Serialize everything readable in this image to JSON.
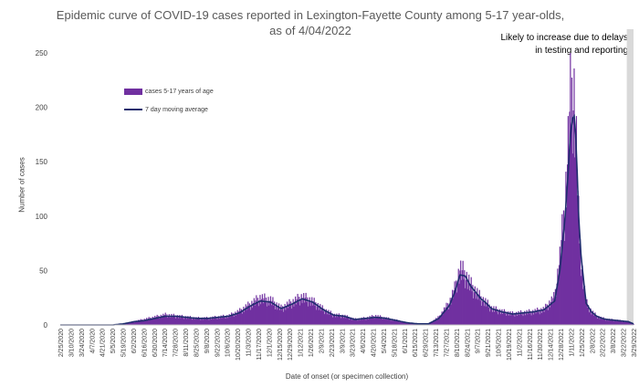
{
  "chart_data": {
    "type": "bar",
    "title": "Epidemic curve of COVID-19 cases reported in Lexington-Fayette County among 5-17 year-olds, as of 4/04/2022",
    "xlabel": "Date of onset (or specimen collection)",
    "ylabel": "Number of cases",
    "ylim": [
      0,
      250
    ],
    "yticks": [
      0,
      50,
      100,
      150,
      200,
      250
    ],
    "grid": false,
    "legend_position": "top-left",
    "annotation": "Likely to increase due to delays in testing and reporting",
    "shaded_region_note_position": "top-right",
    "x_tick_labels": [
      "2/25/2020",
      "3/10/2020",
      "3/24/2020",
      "4/7/2020",
      "4/21/2020",
      "5/5/2020",
      "5/19/2020",
      "6/2/2020",
      "6/16/2020",
      "6/30/2020",
      "7/14/2020",
      "7/28/2020",
      "8/11/2020",
      "8/25/2020",
      "9/8/2020",
      "9/22/2020",
      "10/6/2020",
      "10/20/2020",
      "11/3/2020",
      "11/17/2020",
      "12/1/2020",
      "12/15/2020",
      "12/29/2020",
      "1/12/2021",
      "1/26/2021",
      "2/9/2021",
      "2/23/2021",
      "3/9/2021",
      "3/23/2021",
      "4/6/2021",
      "4/20/2021",
      "5/4/2021",
      "5/18/2021",
      "6/1/2021",
      "6/15/2021",
      "6/29/2021",
      "7/13/2021",
      "7/27/2021",
      "8/10/2021",
      "8/24/2021",
      "9/7/2021",
      "9/21/2021",
      "10/5/2021",
      "10/19/2021",
      "11/2/2021",
      "11/16/2021",
      "11/30/2021",
      "12/14/2021",
      "12/28/2021",
      "1/11/2022",
      "1/25/2022",
      "2/8/2022",
      "2/22/2022",
      "3/8/2022",
      "3/22/2022",
      "3/29/2022"
    ],
    "series": [
      {
        "name": "cases 5-17 years of age",
        "kind": "bar",
        "color": "#7030a0",
        "x": [
          "2020-02-25",
          "2020-03-10",
          "2020-03-24",
          "2020-04-07",
          "2020-04-21",
          "2020-05-05",
          "2020-05-19",
          "2020-06-02",
          "2020-06-16",
          "2020-06-30",
          "2020-07-14",
          "2020-07-28",
          "2020-08-11",
          "2020-08-25",
          "2020-09-08",
          "2020-09-22",
          "2020-10-06",
          "2020-10-20",
          "2020-11-03",
          "2020-11-17",
          "2020-12-01",
          "2020-12-15",
          "2020-12-29",
          "2021-01-12",
          "2021-01-26",
          "2021-02-09",
          "2021-02-23",
          "2021-03-09",
          "2021-03-23",
          "2021-04-06",
          "2021-04-20",
          "2021-05-04",
          "2021-05-18",
          "2021-06-01",
          "2021-06-15",
          "2021-06-29",
          "2021-07-13",
          "2021-07-27",
          "2021-08-03",
          "2021-08-10",
          "2021-08-17",
          "2021-08-24",
          "2021-08-31",
          "2021-09-07",
          "2021-09-14",
          "2021-09-21",
          "2021-10-05",
          "2021-10-19",
          "2021-11-02",
          "2021-11-16",
          "2021-11-30",
          "2021-12-14",
          "2021-12-21",
          "2021-12-28",
          "2022-01-01",
          "2022-01-04",
          "2022-01-07",
          "2022-01-09",
          "2022-01-11",
          "2022-01-13",
          "2022-01-15",
          "2022-01-18",
          "2022-01-22",
          "2022-01-25",
          "2022-02-01",
          "2022-02-08",
          "2022-02-15",
          "2022-02-22",
          "2022-03-08",
          "2022-03-22",
          "2022-03-29"
        ],
        "values": [
          0,
          0,
          0,
          0,
          0,
          0,
          1,
          3,
          5,
          7,
          9,
          8,
          7,
          6,
          6,
          7,
          8,
          12,
          18,
          24,
          22,
          15,
          20,
          25,
          21,
          14,
          9,
          8,
          5,
          6,
          8,
          6,
          4,
          2,
          1,
          1,
          7,
          20,
          32,
          50,
          45,
          36,
          30,
          24,
          20,
          15,
          12,
          10,
          11,
          12,
          14,
          25,
          60,
          110,
          160,
          200,
          210,
          205,
          180,
          140,
          95,
          60,
          35,
          20,
          12,
          8,
          6,
          5,
          4,
          3,
          1
        ]
      },
      {
        "name": "7 day moving average",
        "kind": "line",
        "color": "#1f2d6e",
        "x": [
          "2020-02-25",
          "2020-03-10",
          "2020-03-24",
          "2020-04-07",
          "2020-04-21",
          "2020-05-05",
          "2020-05-19",
          "2020-06-02",
          "2020-06-16",
          "2020-06-30",
          "2020-07-14",
          "2020-07-28",
          "2020-08-11",
          "2020-08-25",
          "2020-09-08",
          "2020-09-22",
          "2020-10-06",
          "2020-10-20",
          "2020-11-03",
          "2020-11-17",
          "2020-12-01",
          "2020-12-15",
          "2020-12-29",
          "2021-01-12",
          "2021-01-26",
          "2021-02-09",
          "2021-02-23",
          "2021-03-09",
          "2021-03-23",
          "2021-04-06",
          "2021-04-20",
          "2021-05-04",
          "2021-05-18",
          "2021-06-01",
          "2021-06-15",
          "2021-06-29",
          "2021-07-13",
          "2021-07-27",
          "2021-08-03",
          "2021-08-10",
          "2021-08-17",
          "2021-08-24",
          "2021-08-31",
          "2021-09-07",
          "2021-09-14",
          "2021-09-21",
          "2021-10-05",
          "2021-10-19",
          "2021-11-02",
          "2021-11-16",
          "2021-11-30",
          "2021-12-14",
          "2021-12-21",
          "2021-12-28",
          "2022-01-01",
          "2022-01-04",
          "2022-01-07",
          "2022-01-09",
          "2022-01-11",
          "2022-01-13",
          "2022-01-15",
          "2022-01-18",
          "2022-01-22",
          "2022-01-25",
          "2022-02-01",
          "2022-02-08",
          "2022-02-15",
          "2022-02-22",
          "2022-03-08",
          "2022-03-22",
          "2022-03-29"
        ],
        "values": [
          0,
          0,
          0,
          0,
          0,
          0,
          1,
          3,
          4,
          6,
          8,
          8,
          7,
          6,
          6,
          7,
          8,
          11,
          17,
          22,
          21,
          15,
          19,
          24,
          21,
          14,
          9,
          8,
          5,
          6,
          7,
          6,
          4,
          2,
          1,
          1,
          6,
          18,
          30,
          46,
          45,
          36,
          30,
          24,
          20,
          15,
          12,
          10,
          11,
          12,
          14,
          22,
          50,
          100,
          140,
          175,
          190,
          192,
          175,
          140,
          100,
          65,
          38,
          20,
          12,
          8,
          6,
          5,
          4,
          3,
          1
        ]
      }
    ]
  },
  "theme": {
    "bar_color": "#7030a0",
    "line_color": "#1f2d6e",
    "shade_color": "#d9d9d9",
    "axis_color": "#bfbfbf"
  },
  "shade_from": "2022-03-20"
}
